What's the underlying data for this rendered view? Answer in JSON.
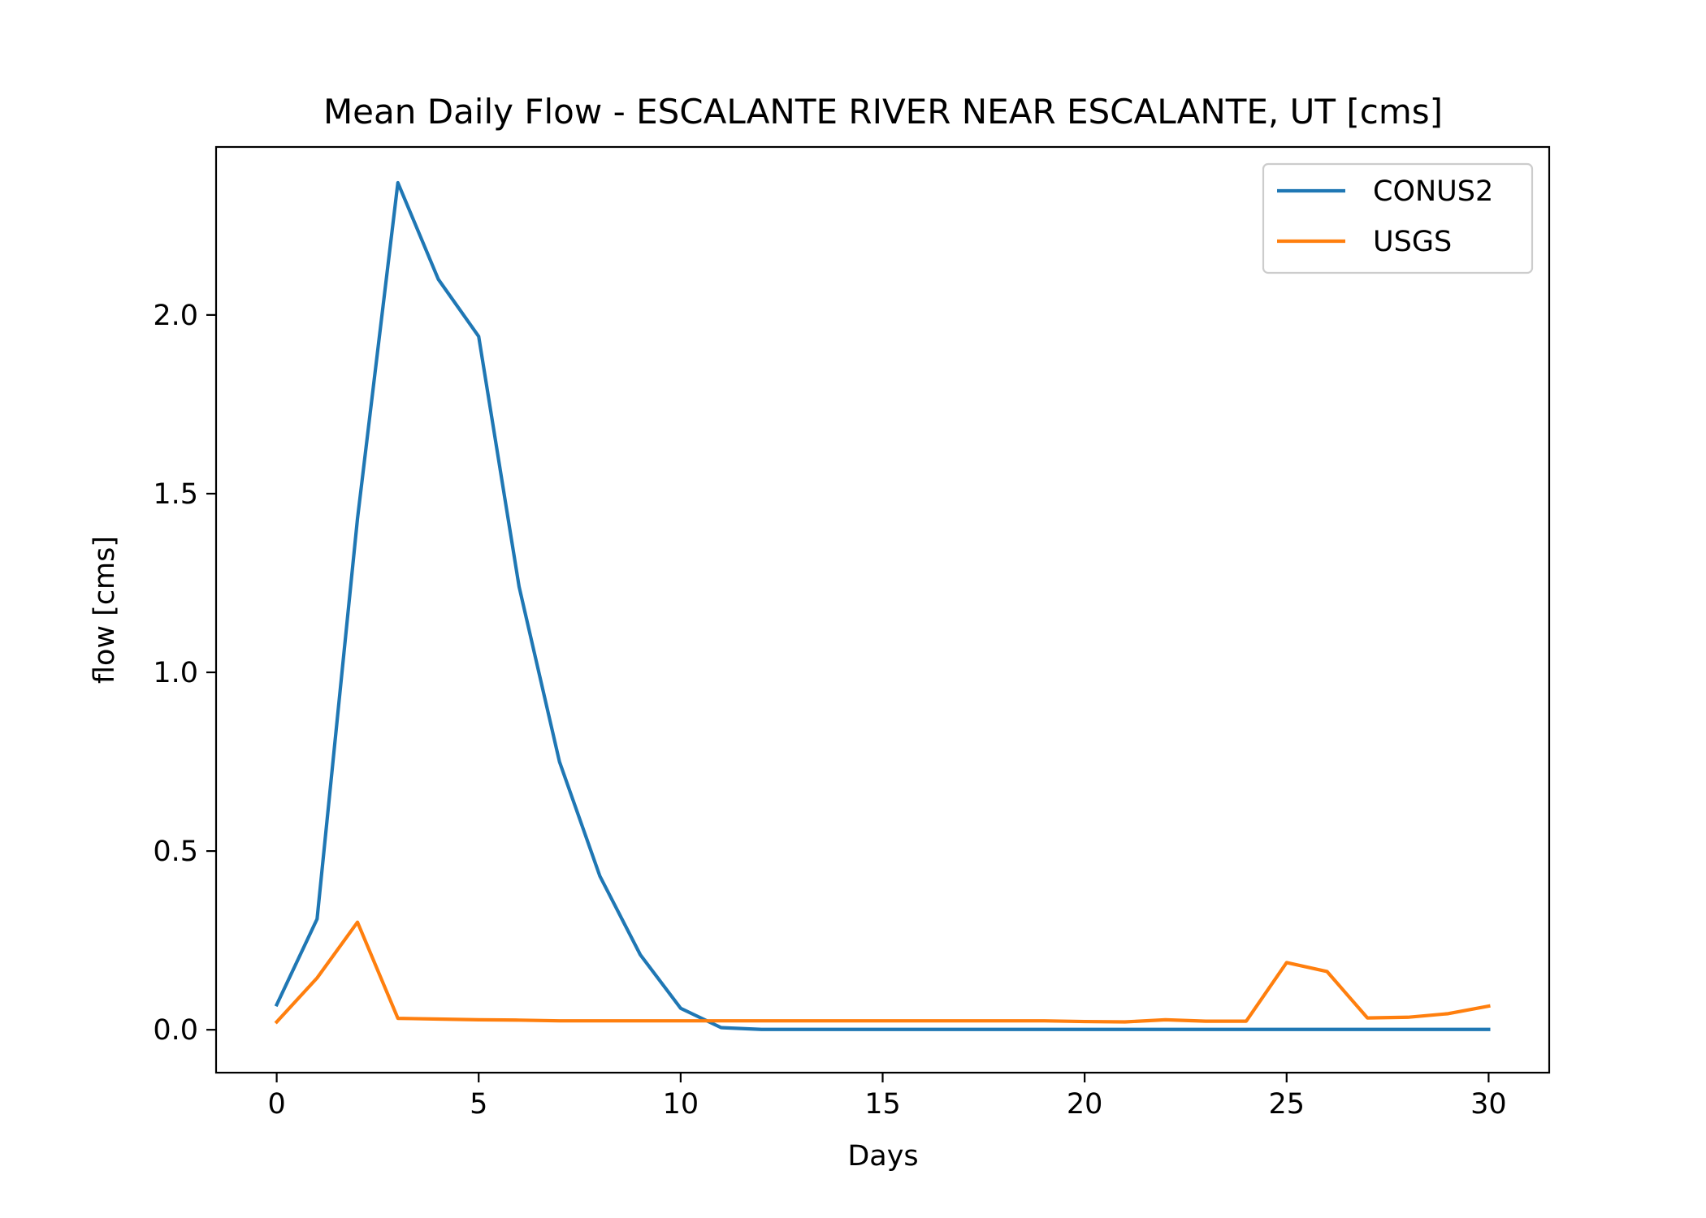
{
  "chart_data": {
    "type": "line",
    "title": "Mean Daily Flow - ESCALANTE RIVER NEAR ESCALANTE, UT [cms]",
    "xlabel": "Days",
    "ylabel": "flow [cms]",
    "xlim": [
      -1.5,
      31.5
    ],
    "ylim": [
      -0.12,
      2.47
    ],
    "xticks": [
      0,
      5,
      10,
      15,
      20,
      25,
      30
    ],
    "xtick_labels": [
      "0",
      "5",
      "10",
      "15",
      "20",
      "25",
      "30"
    ],
    "yticks": [
      0.0,
      0.5,
      1.0,
      1.5,
      2.0
    ],
    "ytick_labels": [
      "0.0",
      "0.5",
      "1.0",
      "1.5",
      "2.0"
    ],
    "grid": false,
    "legend_position": "upper right",
    "x": [
      0,
      1,
      2,
      3,
      4,
      5,
      6,
      7,
      8,
      9,
      10,
      11,
      12,
      13,
      14,
      15,
      16,
      17,
      18,
      19,
      20,
      21,
      22,
      23,
      24,
      25,
      26,
      27,
      28,
      29,
      30
    ],
    "series": [
      {
        "name": "CONUS2",
        "color": "#1f77b4",
        "values": [
          0.07,
          0.31,
          1.43,
          2.37,
          2.1,
          1.94,
          1.24,
          0.75,
          0.43,
          0.21,
          0.06,
          0.006,
          0.001,
          0.001,
          0.001,
          0.001,
          0.001,
          0.001,
          0.001,
          0.001,
          0.001,
          0.001,
          0.001,
          0.001,
          0.001,
          0.001,
          0.001,
          0.001,
          0.001,
          0.001,
          0.001
        ]
      },
      {
        "name": "USGS",
        "color": "#ff7f0e",
        "values": [
          0.022,
          0.145,
          0.301,
          0.032,
          0.03,
          0.028,
          0.027,
          0.025,
          0.025,
          0.025,
          0.025,
          0.025,
          0.025,
          0.025,
          0.025,
          0.025,
          0.025,
          0.025,
          0.025,
          0.025,
          0.023,
          0.022,
          0.028,
          0.024,
          0.024,
          0.188,
          0.163,
          0.033,
          0.035,
          0.045,
          0.066
        ]
      }
    ]
  }
}
